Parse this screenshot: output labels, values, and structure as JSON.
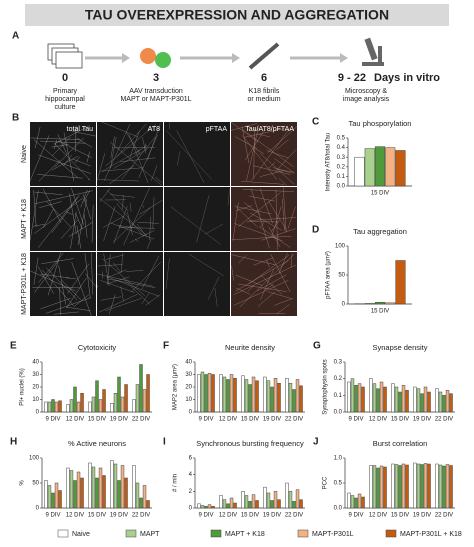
{
  "title": "TAU OVEREXPRESSION AND AGGREGATION",
  "panels": [
    "A",
    "B"
  ],
  "timeline": [
    {
      "day": "0",
      "lines": [
        "Primary",
        "hippocampal",
        "culture"
      ]
    },
    {
      "day": "3",
      "lines": [
        "AAV transduction",
        "MAPT or MAPT-P301L"
      ]
    },
    {
      "day": "6",
      "lines": [
        "K18 fibrils",
        "or medium"
      ]
    },
    {
      "day": "9 - 22",
      "lines": [
        "Microscopy &",
        "image analysis"
      ],
      "unit": "Days in vitro"
    }
  ],
  "micrographs": {
    "columns": [
      "total Tau",
      "AT8",
      "pFTAA",
      "Tau/AT8/pFTAA"
    ],
    "rows": [
      "Naive",
      "MAPT + K18",
      "MAPT-P301L + K18"
    ]
  },
  "chart_data": [
    {
      "type": "bar",
      "panel": "C",
      "title": "Tau phosporylation",
      "ylabel": "Intensity AT8/total Tau",
      "categories": [
        "15 DIV"
      ],
      "ylim": [
        0,
        0.5
      ],
      "yticks": [
        {
          "value": 0,
          "label": "0.0"
        },
        0.1,
        0.2,
        0.3,
        0.4,
        0.5
      ],
      "series": [
        {
          "name": "Naive",
          "color": "#ffffff",
          "values": [
            0.3
          ]
        },
        {
          "name": "MAPT",
          "color": "#a9d18e",
          "values": [
            0.39
          ]
        },
        {
          "name": "MAPT + K18",
          "color": "#4f9a3a",
          "values": [
            0.41
          ]
        },
        {
          "name": "MAPT-P301L",
          "color": "#f4b183",
          "values": [
            0.4
          ]
        },
        {
          "name": "MAPT-P301L + K18",
          "color": "#c55a11",
          "values": [
            0.37
          ]
        }
      ]
    },
    {
      "type": "bar",
      "panel": "D",
      "title": "Tau aggregation",
      "ylabel": "pFTAA area (µm²)",
      "categories": [
        "15 DIV"
      ],
      "ylim": [
        0,
        100
      ],
      "yticks": [
        0,
        50,
        100
      ],
      "series": [
        {
          "name": "Naive",
          "color": "#ffffff",
          "values": [
            0.5
          ]
        },
        {
          "name": "MAPT",
          "color": "#a9d18e",
          "values": [
            1
          ]
        },
        {
          "name": "MAPT + K18",
          "color": "#4f9a3a",
          "values": [
            3
          ]
        },
        {
          "name": "MAPT-P301L",
          "color": "#f4b183",
          "values": [
            2
          ]
        },
        {
          "name": "MAPT-P301L + K18",
          "color": "#c55a11",
          "values": [
            75
          ]
        }
      ]
    },
    {
      "type": "bar",
      "panel": "E",
      "title": "Cytotoxicity",
      "ylabel": "PI+ nuclei (%)",
      "categories": [
        "9 DIV",
        "12 DIV",
        "15 DIV",
        "19 DIV",
        "22 DIV"
      ],
      "ylim": [
        0,
        40
      ],
      "yticks": [
        0,
        10,
        20,
        30,
        40
      ],
      "series": [
        {
          "name": "Naive",
          "color": "#ffffff",
          "values": [
            8,
            6,
            8,
            7,
            10
          ]
        },
        {
          "name": "MAPT",
          "color": "#a9d18e",
          "values": [
            8,
            10,
            12,
            15,
            22
          ]
        },
        {
          "name": "MAPT + K18",
          "color": "#4f9a3a",
          "values": [
            10,
            20,
            25,
            28,
            38
          ]
        },
        {
          "name": "MAPT-P301L",
          "color": "#f4b183",
          "values": [
            8,
            8,
            10,
            12,
            18
          ]
        },
        {
          "name": "MAPT-P301L + K18",
          "color": "#c55a11",
          "values": [
            9,
            15,
            18,
            22,
            30
          ]
        }
      ]
    },
    {
      "type": "bar",
      "panel": "F",
      "title": "Neurite density",
      "ylabel": "MAP2 area (µm²)",
      "categories": [
        "9 DIV",
        "12 DIV",
        "15 DIV",
        "19 DIV",
        "22 DIV"
      ],
      "ylim": [
        0,
        40
      ],
      "yticks": [
        0,
        10,
        20,
        30,
        40
      ],
      "series": [
        {
          "name": "Naive",
          "color": "#ffffff",
          "values": [
            30,
            30,
            29,
            28,
            27
          ]
        },
        {
          "name": "MAPT",
          "color": "#a9d18e",
          "values": [
            32,
            28,
            26,
            25,
            23
          ]
        },
        {
          "name": "MAPT + K18",
          "color": "#4f9a3a",
          "values": [
            30,
            26,
            22,
            20,
            18
          ]
        },
        {
          "name": "MAPT-P301L",
          "color": "#f4b183",
          "values": [
            31,
            30,
            28,
            27,
            26
          ]
        },
        {
          "name": "MAPT-P301L + K18",
          "color": "#c55a11",
          "values": [
            30,
            27,
            25,
            23,
            21
          ]
        }
      ]
    },
    {
      "type": "bar",
      "panel": "G",
      "title": "Synapse density",
      "ylabel": "Synaptophysin spots",
      "categories": [
        "9 DIV",
        "12 DIV",
        "15 DIV",
        "19 DIV",
        "22 DIV"
      ],
      "ylim": [
        0,
        0.3
      ],
      "yticks": [
        {
          "value": 0,
          "label": "0.0"
        },
        0.1,
        0.2,
        0.3
      ],
      "series": [
        {
          "name": "Naive",
          "color": "#ffffff",
          "values": [
            0.18,
            0.2,
            0.17,
            0.15,
            0.14
          ]
        },
        {
          "name": "MAPT",
          "color": "#a9d18e",
          "values": [
            0.2,
            0.17,
            0.15,
            0.14,
            0.12
          ]
        },
        {
          "name": "MAPT + K18",
          "color": "#4f9a3a",
          "values": [
            0.16,
            0.14,
            0.12,
            0.11,
            0.1
          ]
        },
        {
          "name": "MAPT-P301L",
          "color": "#f4b183",
          "values": [
            0.17,
            0.18,
            0.16,
            0.15,
            0.13
          ]
        },
        {
          "name": "MAPT-P301L + K18",
          "color": "#c55a11",
          "values": [
            0.15,
            0.15,
            0.13,
            0.12,
            0.11
          ]
        }
      ]
    },
    {
      "type": "bar",
      "panel": "H",
      "title": "% Active neurons",
      "ylabel": "%",
      "categories": [
        "9 DIV",
        "12 DIV",
        "15 DIV",
        "19 DIV",
        "22 DIV"
      ],
      "ylim": [
        0,
        100
      ],
      "yticks": [
        0,
        50,
        100
      ],
      "series": [
        {
          "name": "Naive",
          "color": "#ffffff",
          "values": [
            55,
            80,
            90,
            95,
            85
          ]
        },
        {
          "name": "MAPT",
          "color": "#a9d18e",
          "values": [
            45,
            75,
            82,
            88,
            50
          ]
        },
        {
          "name": "MAPT + K18",
          "color": "#4f9a3a",
          "values": [
            30,
            55,
            60,
            55,
            20
          ]
        },
        {
          "name": "MAPT-P301L",
          "color": "#f4b183",
          "values": [
            50,
            72,
            80,
            85,
            45
          ]
        },
        {
          "name": "MAPT-P301L + K18",
          "color": "#c55a11",
          "values": [
            35,
            60,
            65,
            60,
            15
          ]
        }
      ]
    },
    {
      "type": "bar",
      "panel": "I",
      "title": "Synchronous bursting frequency",
      "ylabel": "# / min",
      "categories": [
        "9 DIV",
        "12 DIV",
        "15 DIV",
        "19 DIV",
        "22 DIV"
      ],
      "ylim": [
        0,
        6
      ],
      "yticks": [
        0,
        2,
        4,
        6
      ],
      "series": [
        {
          "name": "Naive",
          "color": "#ffffff",
          "values": [
            0.5,
            1.5,
            2,
            2.5,
            3
          ]
        },
        {
          "name": "MAPT",
          "color": "#a9d18e",
          "values": [
            0.3,
            1,
            1.5,
            1.8,
            2
          ]
        },
        {
          "name": "MAPT + K18",
          "color": "#4f9a3a",
          "values": [
            0.2,
            0.5,
            0.8,
            0.9,
            0.8
          ]
        },
        {
          "name": "MAPT-P301L",
          "color": "#f4b183",
          "values": [
            0.4,
            1.2,
            1.6,
            2,
            2.2
          ]
        },
        {
          "name": "MAPT-P301L + K18",
          "color": "#c55a11",
          "values": [
            0.2,
            0.6,
            0.9,
            1,
            1
          ]
        }
      ]
    },
    {
      "type": "bar",
      "panel": "J",
      "title": "Burst correlation",
      "ylabel": "PCC",
      "categories": [
        "9 DIV",
        "12 DIV",
        "15 DIV",
        "19 DIV",
        "22 DIV"
      ],
      "ylim": [
        0,
        1
      ],
      "yticks": [
        {
          "value": 0,
          "label": "0.0"
        },
        0.5,
        {
          "value": 1,
          "label": "1.0"
        }
      ],
      "series": [
        {
          "name": "Naive",
          "color": "#ffffff",
          "values": [
            0.3,
            0.85,
            0.88,
            0.9,
            0.88
          ]
        },
        {
          "name": "MAPT",
          "color": "#a9d18e",
          "values": [
            0.25,
            0.85,
            0.87,
            0.88,
            0.86
          ]
        },
        {
          "name": "MAPT + K18",
          "color": "#4f9a3a",
          "values": [
            0.2,
            0.8,
            0.85,
            0.87,
            0.84
          ]
        },
        {
          "name": "MAPT-P301L",
          "color": "#f4b183",
          "values": [
            0.28,
            0.84,
            0.88,
            0.89,
            0.87
          ]
        },
        {
          "name": "MAPT-P301L + K18",
          "color": "#c55a11",
          "values": [
            0.22,
            0.82,
            0.86,
            0.88,
            0.85
          ]
        }
      ]
    }
  ]
}
